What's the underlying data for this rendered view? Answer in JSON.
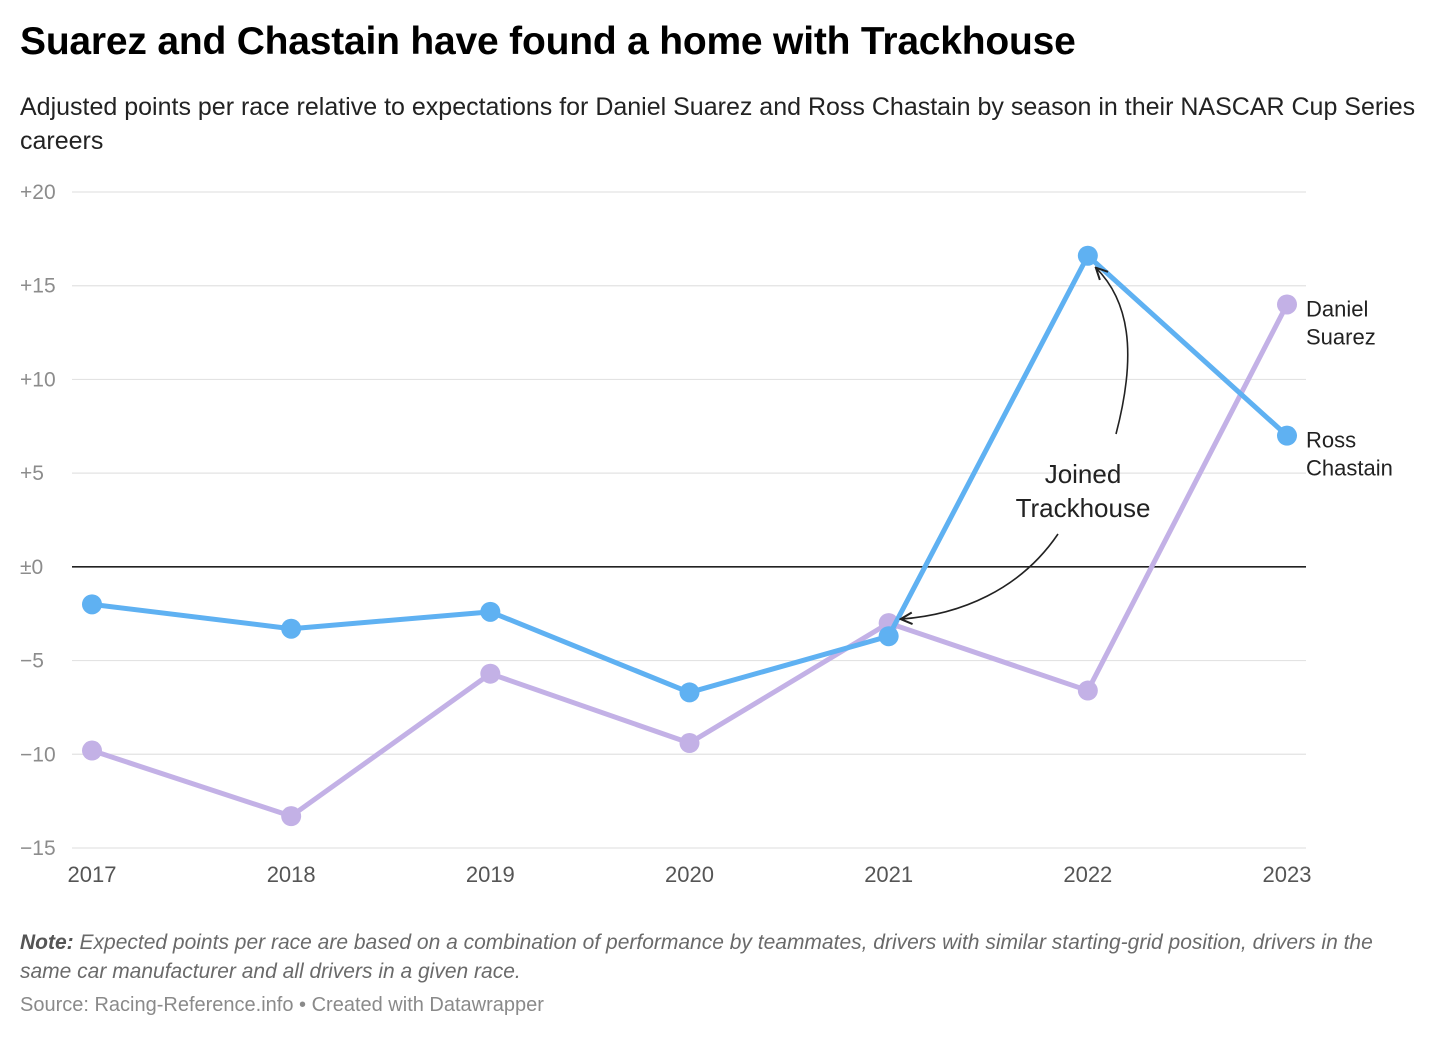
{
  "title": "Suarez and Chastain have found a home with Trackhouse",
  "subtitle": "Adjusted points per race relative to expectations for Daniel Suarez and Ross Chastain by season in their NASCAR Cup Series careers",
  "note_label": "Note:",
  "note_text": "Expected points per race are based on a combination of performance by teammates, drivers with similar starting-grid position, drivers in the same car manufacturer and all drivers in a given race.",
  "source": "Source: Racing-Reference.info • Created with Datawrapper",
  "colors": {
    "chastain": "#5fb1f2",
    "suarez": "#c3b1e6",
    "grid": "#e3e3e3",
    "zero": "#222222"
  },
  "chart_data": {
    "type": "line",
    "x": [
      2017,
      2018,
      2019,
      2020,
      2021,
      2022,
      2023
    ],
    "ylim": [
      -15,
      20
    ],
    "yticks": [
      20,
      15,
      10,
      5,
      0,
      -5,
      -10,
      -15
    ],
    "ytick_labels": [
      "+20",
      "+15",
      "+10",
      "+5",
      "±0",
      "−5",
      "−10",
      "−15"
    ],
    "grid": true,
    "series": [
      {
        "name": "Ross Chastain",
        "label_lines": [
          "Ross",
          "Chastain"
        ],
        "color": "#5fb1f2",
        "values": [
          -2.0,
          -3.3,
          -2.4,
          -6.7,
          -3.7,
          16.6,
          7.0
        ]
      },
      {
        "name": "Daniel Suarez",
        "label_lines": [
          "Daniel",
          "Suarez"
        ],
        "color": "#c3b1e6",
        "values": [
          -9.8,
          -13.3,
          -5.7,
          -9.4,
          -3.0,
          -6.6,
          14.0
        ]
      }
    ],
    "annotation": {
      "text_lines": [
        "Joined",
        "Trackhouse"
      ]
    }
  }
}
